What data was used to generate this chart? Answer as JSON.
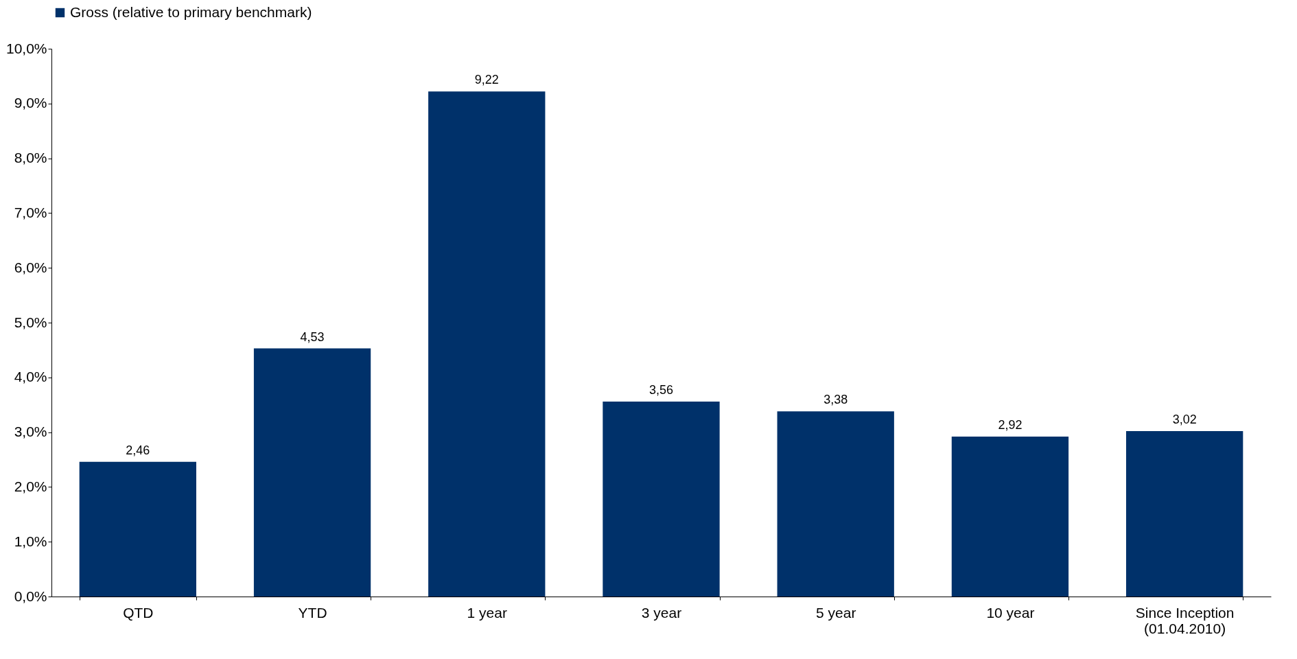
{
  "chart_data": {
    "type": "bar",
    "categories": [
      "QTD",
      "YTD",
      "1 year",
      "3 year",
      "5 year",
      "10 year",
      "Since Inception (01.04.2010)"
    ],
    "series": [
      {
        "name": "Gross (relative to primary benchmark)",
        "color": "#00316a",
        "values": [
          2.46,
          4.53,
          9.22,
          3.56,
          3.38,
          2.92,
          3.02
        ],
        "value_labels": [
          "2,46",
          "4,53",
          "9,22",
          "3,56",
          "3,38",
          "2,92",
          "3,02"
        ]
      }
    ],
    "ylim": [
      0,
      10
    ],
    "yticks": [
      {
        "value": 0,
        "label": "0,0%"
      },
      {
        "value": 1,
        "label": "1,0%"
      },
      {
        "value": 2,
        "label": "2,0%"
      },
      {
        "value": 3,
        "label": "3,0%"
      },
      {
        "value": 4,
        "label": "4,0%"
      },
      {
        "value": 5,
        "label": "5,0%"
      },
      {
        "value": 6,
        "label": "6,0%"
      },
      {
        "value": 7,
        "label": "7,0%"
      },
      {
        "value": 8,
        "label": "8,0%"
      },
      {
        "value": 9,
        "label": "9,0%"
      },
      {
        "value": 10,
        "label": "10,0%"
      }
    ],
    "grid": false,
    "legend": "top"
  }
}
